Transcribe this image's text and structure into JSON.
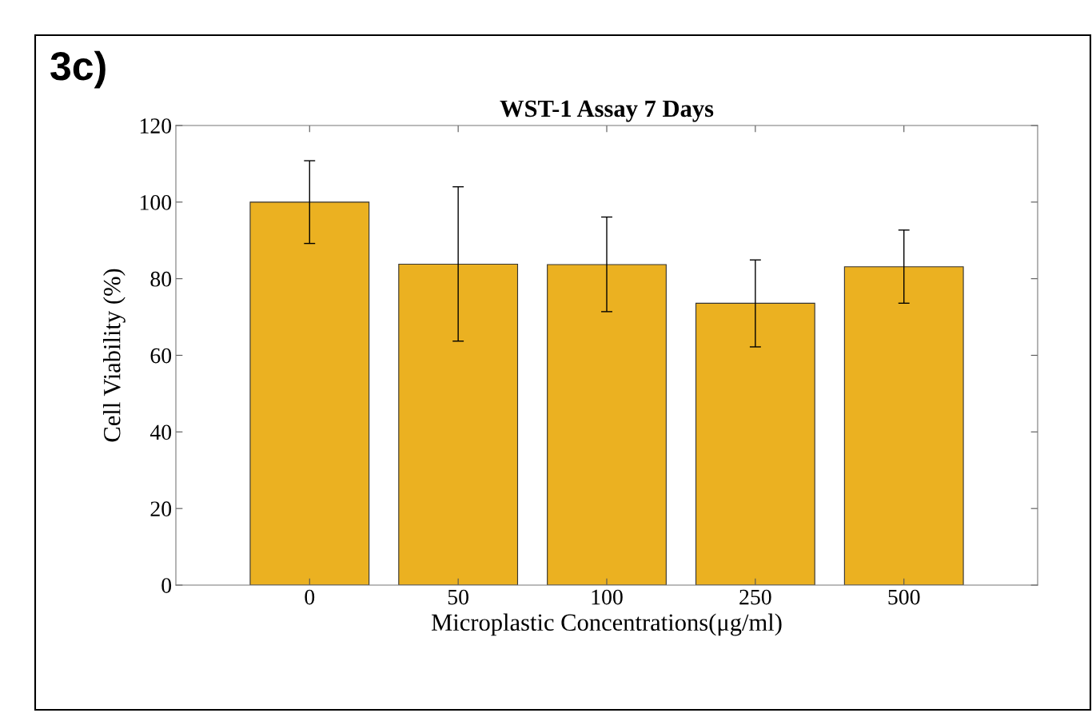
{
  "chart_data": {
    "type": "bar",
    "title": "WST-1 Assay 7 Days",
    "xlabel": "Microplastic Concentrations(μg/ml)",
    "ylabel": "Cell Viability (%)",
    "annotations": [
      "3c)"
    ],
    "categories": [
      "0",
      "50",
      "100",
      "250",
      "500"
    ],
    "values": [
      100,
      83.8,
      83.7,
      73.6,
      83.1
    ],
    "errors": [
      [
        89.2,
        110.8
      ],
      [
        63.7,
        104.0
      ],
      [
        71.4,
        96.1
      ],
      [
        62.2,
        84.9
      ],
      [
        73.6,
        92.7
      ]
    ],
    "color": "#ebb121",
    "ylim": [
      0,
      120
    ],
    "yticks": [
      0,
      20,
      40,
      60,
      80,
      100,
      120
    ],
    "grid": false
  }
}
